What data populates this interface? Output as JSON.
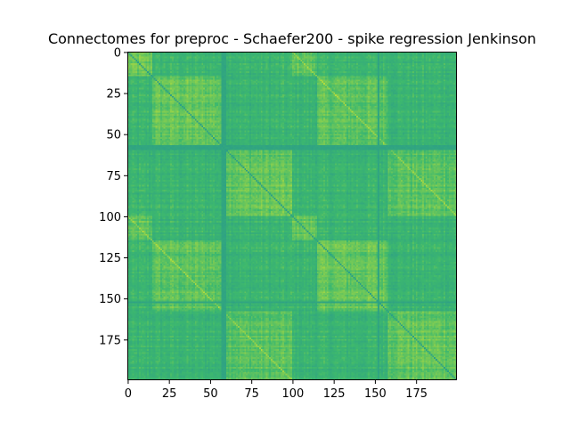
{
  "chart_data": {
    "type": "heatmap",
    "title": "Connectomes for preproc - Schaefer200 - spike regression Jenkinson",
    "xlabel": "",
    "ylabel": "",
    "matrix_size": 200,
    "xlim": [
      0,
      199
    ],
    "ylim": [
      199,
      0
    ],
    "x_ticks": [
      0,
      25,
      50,
      75,
      100,
      125,
      150,
      175
    ],
    "y_ticks": [
      0,
      25,
      50,
      75,
      100,
      125,
      150,
      175
    ],
    "colormap": "viridis",
    "block_boundaries": [
      0,
      15,
      58,
      100,
      115,
      158,
      200
    ],
    "low_connectivity_bands": [
      57,
      58,
      59,
      152
    ],
    "diagonal_value": 1.0,
    "colors": {
      "axis": "#000000",
      "background": "#ffffff",
      "low": "#2a9b8a",
      "mid": "#3db86e",
      "high": "#b5dc3c"
    },
    "grid": false,
    "legend": "none"
  }
}
